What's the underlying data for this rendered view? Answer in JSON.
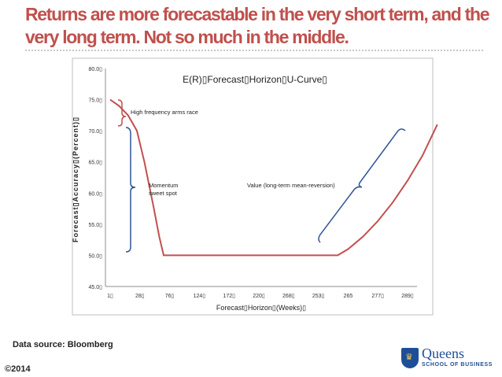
{
  "slide": {
    "title_line1": "Returns are more forecastable in the very short term, and the",
    "title_line2": "very long term. Not so much in the middle.",
    "source": "Data source: Bloomberg",
    "copyright": "©2014"
  },
  "logo": {
    "name": "Queens",
    "subtitle": "SCHOOL OF BUSINESS",
    "crown_icon": "crown-icon"
  },
  "colors": {
    "title": "#c0504d",
    "series": "#c0504d",
    "brace": "#2f5597"
  },
  "chart_data": {
    "type": "line",
    "title": "E(R)▯Forecast▯Horizon▯U-Curve▯",
    "xlabel": "Forecast▯Horizon▯(Weeks)▯",
    "ylabel": "Forecast▯Accuracy▯(Percent)▯",
    "x_tick_labels": [
      "1▯",
      "28▯",
      "76▯",
      "124▯",
      "172▯",
      "220▯",
      "268▯",
      "253▯",
      "265",
      "277▯",
      "289▯"
    ],
    "y_tick_labels": [
      "80.0▯",
      "75.0▯",
      "70.0▯",
      "65.0▯",
      "60.0▯",
      "55.0▯",
      "50.0▯",
      "45.0▯"
    ],
    "ylim": [
      45,
      80
    ],
    "grid": false,
    "legend": "none",
    "series": [
      {
        "points": [
          [
            0,
            75.0
          ],
          [
            0.3,
            74.0
          ],
          [
            0.6,
            72.5
          ],
          [
            0.9,
            70.0
          ],
          [
            1.15,
            65.0
          ],
          [
            1.45,
            58.0
          ],
          [
            1.65,
            53.0
          ],
          [
            1.8,
            50.0
          ],
          [
            2.5,
            50.0
          ],
          [
            5.0,
            50.0
          ],
          [
            7.65,
            50.0
          ],
          [
            8.0,
            51.0
          ],
          [
            8.5,
            53.0
          ],
          [
            9.0,
            55.5
          ],
          [
            9.5,
            58.5
          ],
          [
            10.0,
            62.0
          ],
          [
            10.5,
            66.0
          ],
          [
            11.0,
            71.0
          ]
        ]
      }
    ],
    "annotations": [
      {
        "text": "High frequency arms race"
      },
      {
        "text": "Momentum",
        "text2": "sweet spot"
      },
      {
        "text": "Value (long-term mean-reversion)"
      }
    ]
  }
}
